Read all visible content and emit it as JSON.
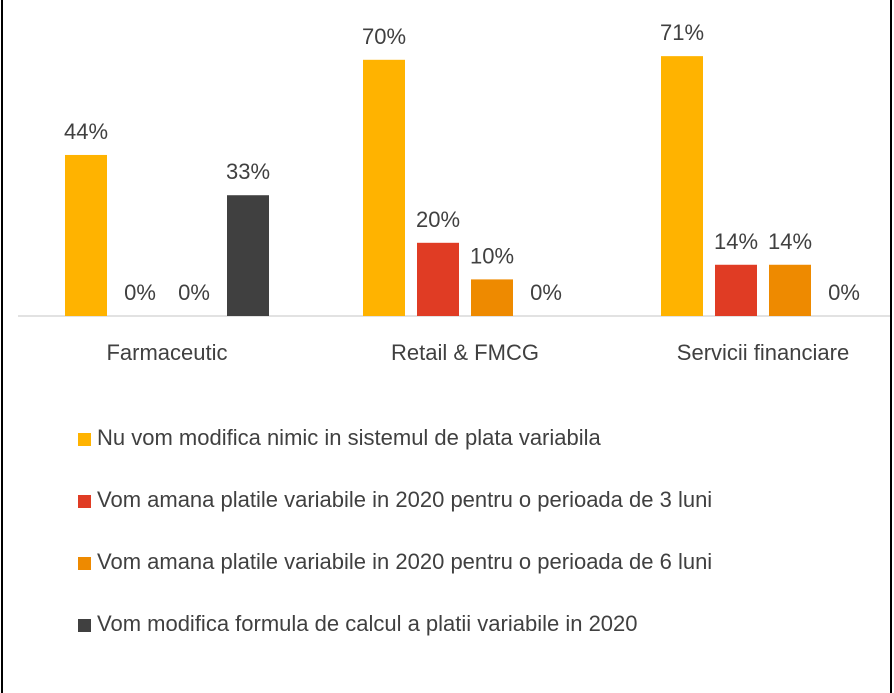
{
  "chart_data": {
    "type": "bar",
    "categories": [
      "Farmaceutic",
      "Retail & FMCG",
      "Servicii financiare"
    ],
    "series": [
      {
        "name": "Nu vom modifica nimic in sistemul de plata variabila",
        "color": "#FFB300",
        "values": [
          44,
          70,
          71
        ],
        "value_labels": [
          "44%",
          "70%",
          "71%"
        ]
      },
      {
        "name": "Vom amana platile variabile in 2020 pentru o perioada de 3 luni",
        "color": "#E03C24",
        "values": [
          0,
          20,
          14
        ],
        "value_labels": [
          "0%",
          "20%",
          "14%"
        ]
      },
      {
        "name": "Vom amana platile variabile in 2020 pentru o perioada de 6 luni",
        "color": "#EE8A00",
        "values": [
          0,
          10,
          14
        ],
        "value_labels": [
          "0%",
          "10%",
          "14%"
        ]
      },
      {
        "name": "Vom modifica formula de calcul a platii variabile in 2020",
        "color": "#404040",
        "values": [
          33,
          0,
          0
        ],
        "value_labels": [
          "33%",
          "0%",
          "0%"
        ]
      }
    ]
  }
}
